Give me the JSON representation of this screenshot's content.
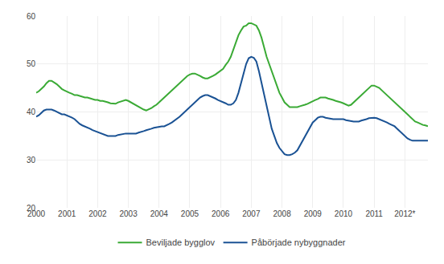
{
  "chart_data": {
    "type": "line",
    "categories": [
      "2000",
      null,
      null,
      null,
      null,
      null,
      null,
      null,
      null,
      null,
      null,
      null,
      "2001",
      null,
      null,
      null,
      null,
      null,
      null,
      null,
      null,
      null,
      null,
      null,
      "2002",
      null,
      null,
      null,
      null,
      null,
      null,
      null,
      null,
      null,
      null,
      null,
      "2003",
      null,
      null,
      null,
      null,
      null,
      null,
      null,
      null,
      null,
      null,
      null,
      "2004",
      null,
      null,
      null,
      null,
      null,
      null,
      null,
      null,
      null,
      null,
      null,
      "2005",
      null,
      null,
      null,
      null,
      null,
      null,
      null,
      null,
      null,
      null,
      null,
      "2006",
      null,
      null,
      null,
      null,
      null,
      null,
      null,
      null,
      null,
      null,
      null,
      "2007",
      null,
      null,
      null,
      null,
      null,
      null,
      null,
      null,
      null,
      null,
      null,
      "2008",
      null,
      null,
      null,
      null,
      null,
      null,
      null,
      null,
      null,
      null,
      null,
      "2009",
      null,
      null,
      null,
      null,
      null,
      null,
      null,
      null,
      null,
      null,
      null,
      "2010",
      null,
      null,
      null,
      null,
      null,
      null,
      null,
      null,
      null,
      null,
      null,
      "2011",
      null,
      null,
      null,
      null,
      null,
      null,
      null,
      null,
      null,
      null,
      null,
      "2012*",
      null,
      null,
      null,
      null,
      null,
      null,
      null,
      null,
      null
    ],
    "series": [
      {
        "name": "Beviljade bygglov",
        "color": "#3aaa35",
        "values": [
          44.0,
          44.3,
          44.8,
          45.3,
          46.0,
          46.5,
          46.5,
          46.2,
          45.8,
          45.3,
          44.8,
          44.5,
          44.2,
          44.0,
          43.8,
          43.5,
          43.5,
          43.3,
          43.2,
          43.0,
          43.0,
          42.8,
          42.7,
          42.5,
          42.5,
          42.3,
          42.3,
          42.2,
          42.0,
          41.8,
          41.7,
          41.7,
          42.0,
          42.2,
          42.3,
          42.5,
          42.3,
          42.0,
          41.7,
          41.3,
          41.0,
          40.8,
          40.5,
          40.3,
          40.5,
          40.8,
          41.2,
          41.5,
          42.0,
          42.5,
          43.0,
          43.5,
          44.0,
          44.5,
          45.0,
          45.5,
          46.0,
          46.5,
          47.0,
          47.5,
          47.8,
          48.0,
          48.0,
          47.8,
          47.5,
          47.2,
          47.0,
          47.0,
          47.2,
          47.5,
          47.8,
          48.2,
          48.5,
          49.0,
          49.8,
          50.5,
          51.5,
          53.0,
          54.5,
          56.0,
          57.0,
          57.8,
          58.0,
          58.5,
          58.5,
          58.3,
          58.0,
          57.0,
          55.5,
          53.5,
          51.5,
          50.0,
          48.5,
          47.0,
          45.5,
          44.0,
          43.0,
          42.0,
          41.5,
          41.0,
          41.0,
          41.0,
          41.0,
          41.2,
          41.3,
          41.5,
          41.7,
          42.0,
          42.2,
          42.5,
          42.7,
          43.0,
          43.0,
          43.0,
          42.8,
          42.7,
          42.5,
          42.3,
          42.2,
          42.0,
          41.8,
          41.5,
          41.3,
          41.5,
          42.0,
          42.5,
          43.0,
          43.5,
          44.0,
          44.5,
          45.0,
          45.5,
          45.5,
          45.3,
          45.0,
          44.5,
          44.0,
          43.5,
          43.0,
          42.5,
          42.0,
          41.5,
          41.0,
          40.5,
          40.0,
          39.5,
          39.0,
          38.5,
          38.0,
          37.8,
          37.5,
          37.3,
          37.2,
          37.0
        ]
      },
      {
        "name": "Påbörjade nybyggnader",
        "color": "#1a5294",
        "values": [
          39.0,
          39.3,
          39.8,
          40.3,
          40.5,
          40.5,
          40.5,
          40.3,
          40.0,
          39.8,
          39.5,
          39.5,
          39.3,
          39.0,
          38.8,
          38.5,
          38.0,
          37.5,
          37.2,
          37.0,
          36.8,
          36.5,
          36.2,
          36.0,
          35.8,
          35.5,
          35.3,
          35.2,
          35.0,
          35.0,
          35.0,
          35.0,
          35.2,
          35.3,
          35.5,
          35.5,
          35.5,
          35.5,
          35.5,
          35.5,
          35.7,
          35.8,
          36.0,
          36.2,
          36.3,
          36.5,
          36.7,
          36.8,
          37.0,
          37.0,
          37.0,
          37.2,
          37.5,
          37.8,
          38.2,
          38.5,
          39.0,
          39.5,
          40.0,
          40.5,
          41.0,
          41.5,
          42.0,
          42.5,
          43.0,
          43.3,
          43.5,
          43.5,
          43.3,
          43.0,
          42.8,
          42.5,
          42.3,
          42.0,
          41.8,
          41.5,
          41.5,
          41.8,
          42.5,
          44.0,
          46.0,
          48.0,
          50.0,
          51.2,
          51.5,
          51.3,
          50.5,
          48.5,
          46.0,
          43.5,
          41.0,
          38.5,
          36.5,
          35.0,
          33.5,
          32.5,
          31.8,
          31.2,
          31.0,
          31.0,
          31.2,
          31.5,
          32.0,
          33.0,
          34.0,
          35.0,
          36.0,
          37.0,
          37.8,
          38.3,
          38.8,
          39.0,
          39.0,
          38.8,
          38.7,
          38.5,
          38.5,
          38.5,
          38.5,
          38.5,
          38.5,
          38.3,
          38.2,
          38.0,
          38.0,
          38.0,
          38.0,
          38.2,
          38.3,
          38.5,
          38.7,
          38.8,
          38.8,
          38.7,
          38.5,
          38.3,
          38.0,
          37.8,
          37.5,
          37.3,
          37.0,
          36.5,
          36.0,
          35.5,
          35.0,
          34.5,
          34.2,
          34.0,
          34.0,
          34.0,
          34.0,
          34.0,
          34.0,
          34.0
        ]
      }
    ],
    "ylim": [
      20,
      60
    ],
    "yticks": [
      20,
      30,
      40,
      50,
      60
    ],
    "grid": true,
    "legend": "bottom"
  }
}
